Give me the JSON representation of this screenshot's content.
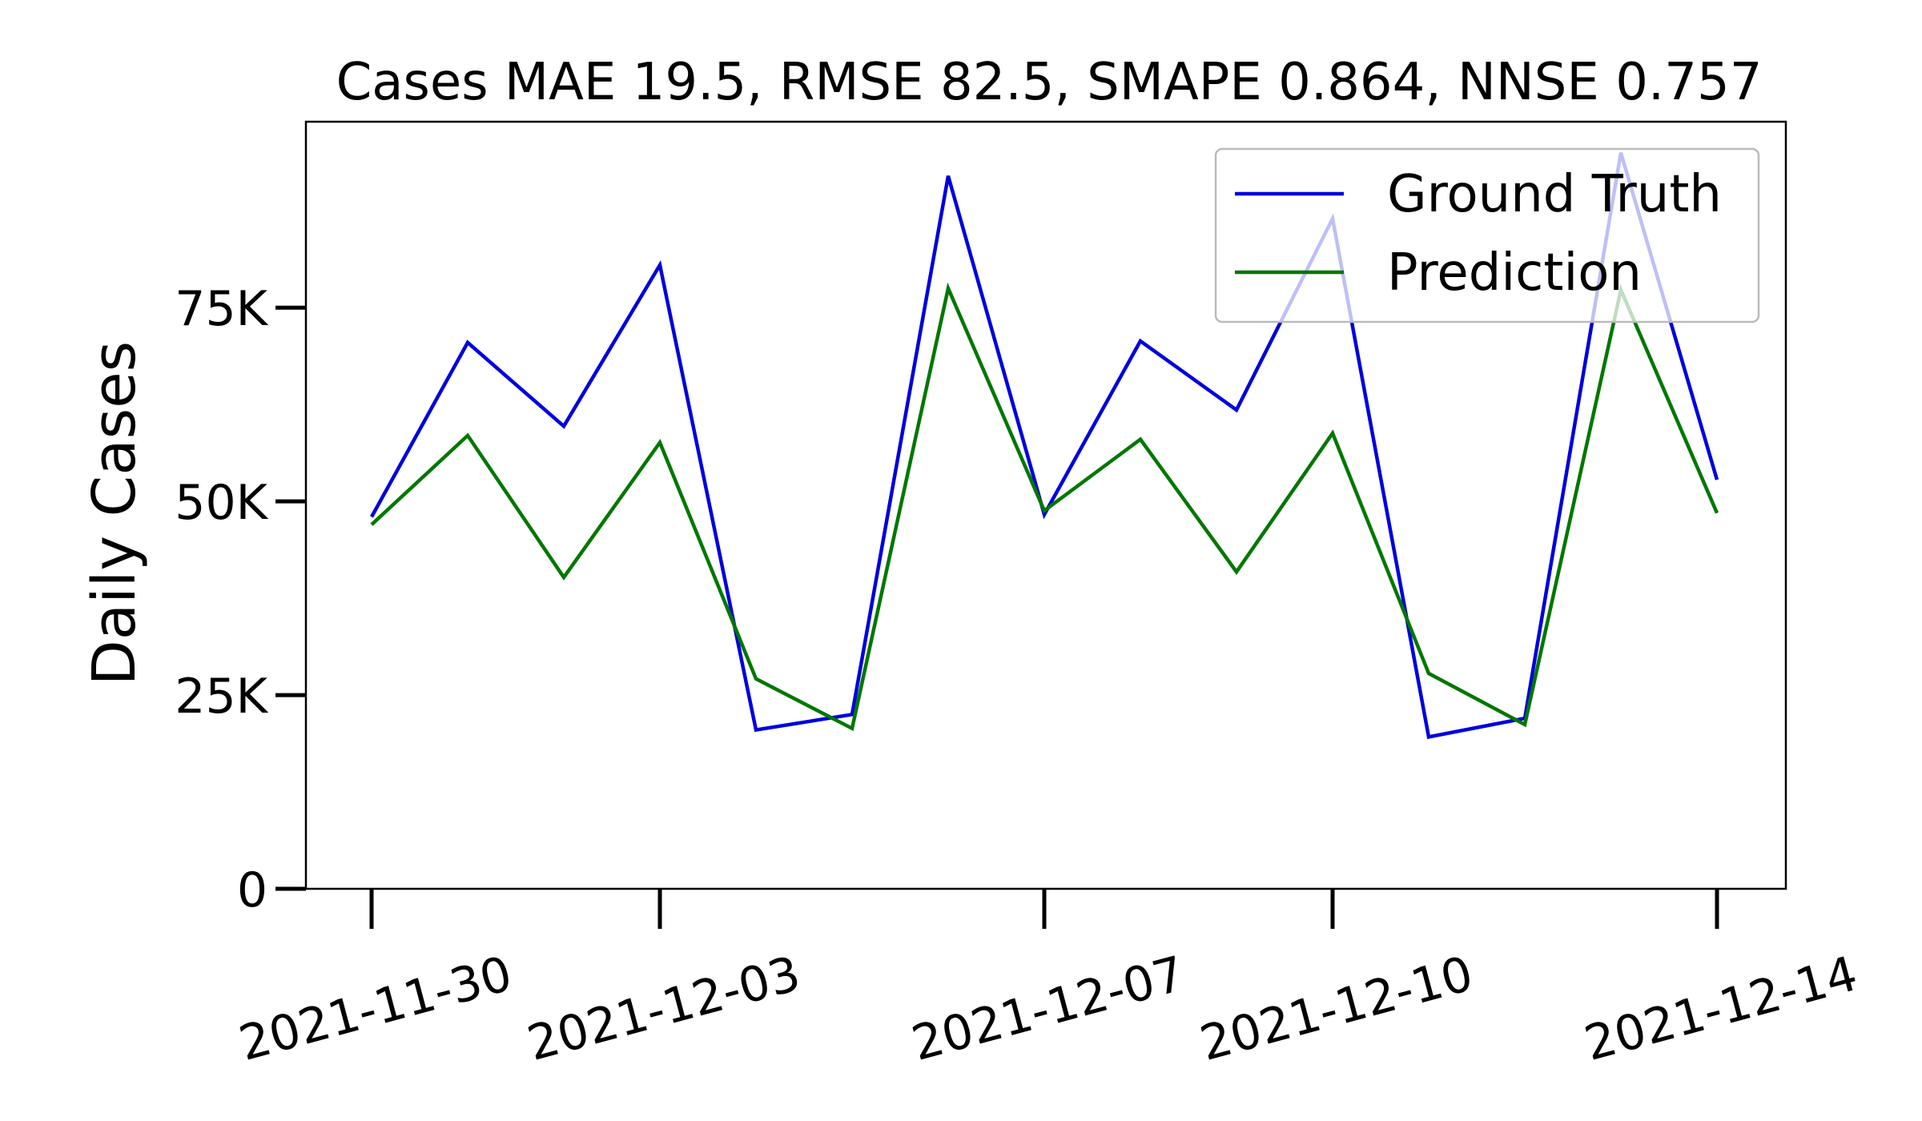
{
  "chart_data": {
    "type": "line",
    "title": "Cases MAE 19.5, RMSE 82.5, SMAPE 0.864, NNSE 0.757",
    "xlabel": "",
    "ylabel": "Daily Cases",
    "x": [
      "2021-11-30",
      "2021-12-01",
      "2021-12-02",
      "2021-12-03",
      "2021-12-04",
      "2021-12-05",
      "2021-12-06",
      "2021-12-07",
      "2021-12-08",
      "2021-12-09",
      "2021-12-10",
      "2021-12-11",
      "2021-12-12",
      "2021-12-13",
      "2021-12-14"
    ],
    "x_ticks": [
      "2021-11-30",
      "2021-12-03",
      "2021-12-07",
      "2021-12-10",
      "2021-12-14"
    ],
    "y_ticks": [
      0,
      25000,
      50000,
      75000
    ],
    "y_tick_labels": [
      "0",
      "25K",
      "50K",
      "75K"
    ],
    "ylim": [
      0,
      99000
    ],
    "grid": false,
    "legend_position": "top-right",
    "series": [
      {
        "name": "Ground Truth",
        "color": "#0000dd",
        "values": [
          48000,
          70500,
          59700,
          80500,
          20500,
          22500,
          92000,
          48300,
          70700,
          61800,
          86500,
          19600,
          22000,
          95000,
          52800
        ]
      },
      {
        "name": "Prediction",
        "color": "#007700",
        "values": [
          47000,
          58500,
          40200,
          57600,
          27100,
          20700,
          77500,
          48800,
          58000,
          40900,
          58800,
          27800,
          21200,
          77300,
          48500
        ]
      }
    ]
  }
}
